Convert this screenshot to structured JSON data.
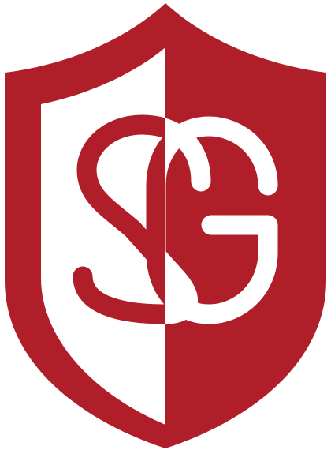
{
  "logo": {
    "monogram": "SG",
    "colors": {
      "brand_red": "#B01E2A",
      "background": "#FFFFFF"
    },
    "icon": "shield-monogram-icon"
  }
}
